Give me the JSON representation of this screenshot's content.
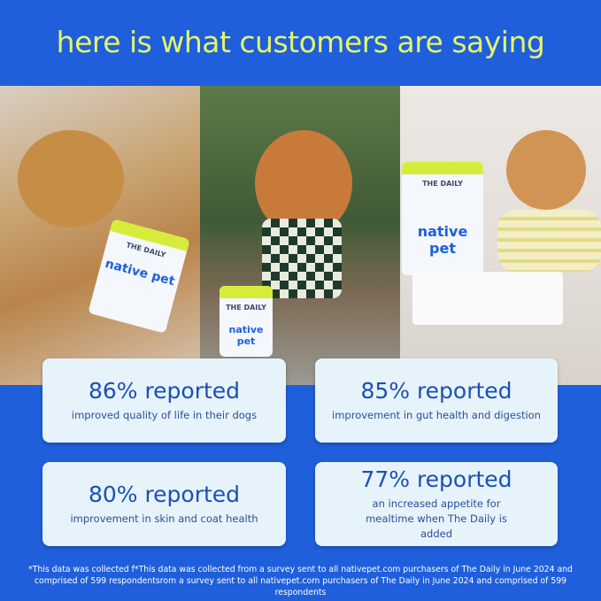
{
  "headline": "here is what customers are saying",
  "colors": {
    "background": "#1f5fdc",
    "headline": "#e2f56a",
    "card": "#e6f3fb",
    "card_text": "#1d4fb5"
  },
  "product": {
    "label_top": "THE DAILY",
    "brand": "native pet"
  },
  "stats": [
    {
      "headline": "86% reported",
      "detail": "improved quality of life in their dogs"
    },
    {
      "headline": "85% reported",
      "detail": "improvement in gut health and digestion"
    },
    {
      "headline": "80% reported",
      "detail": "improvement in skin and coat health"
    },
    {
      "headline": "77% reported",
      "detail": "an increased appetite for mealtime when The Daily is added"
    }
  ],
  "footnote": "*This data was collected f*This data was collected from a survey sent to all nativepet.com purchasers of The Daily in June 2024 and comprised of 599 respondentsrom a survey sent to all nativepet.com purchasers of The Daily in June 2024 and comprised of 599 respondents"
}
